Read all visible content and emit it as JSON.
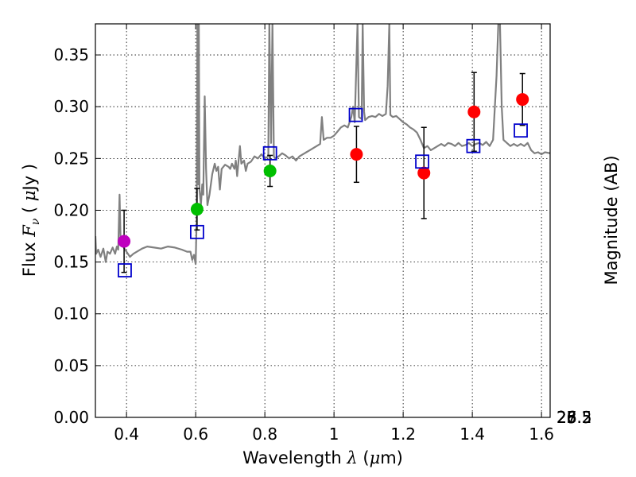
{
  "chart_data": {
    "type": "scatter",
    "title": "",
    "xlabel": "Wavelength  λ (μm)",
    "ylabel": "Flux  F_ν  ( μJy )",
    "ylabel_parts": {
      "prefix": "Flux ",
      "symbol": "F",
      "subscript": "ν",
      "open": " ( ",
      "mu": "μ",
      "unit": "Jy",
      "close": " )"
    },
    "xlabel_parts": {
      "prefix": "Wavelength ",
      "symbol": "λ",
      "open": " (",
      "mu": "μ",
      "unit": "m)"
    },
    "y2label": "Magnitude (AB)",
    "xlim": [
      0.31,
      1.625
    ],
    "ylim": [
      0.0,
      0.38
    ],
    "grid": true,
    "x_ticks": [
      0.4,
      0.6,
      0.8,
      1.0,
      1.2,
      1.4,
      1.6
    ],
    "x_tick_labels": [
      "0.4",
      "0.6",
      "0.8",
      "1",
      "1.2",
      "1.4",
      "1.6"
    ],
    "y_ticks": [
      0.0,
      0.05,
      0.1,
      0.15,
      0.2,
      0.25,
      0.3,
      0.35
    ],
    "y_tick_labels": [
      "0.00",
      "0.05",
      "0.10",
      "0.15",
      "0.20",
      "0.25",
      "0.30",
      "0.35"
    ],
    "y2_ticks": [
      25,
      25.2,
      25.5,
      26,
      26.5,
      27,
      28
    ],
    "y2_tick_labels": [
      "25",
      "25.2",
      "25.5",
      "26",
      "26.5",
      "27",
      "28"
    ],
    "y2_zero_point_ujy": 3630.78,
    "observed": [
      {
        "x": 0.393,
        "y": 0.17,
        "err": 0.03,
        "color": "#bf00bf"
      },
      {
        "x": 0.604,
        "y": 0.201,
        "err": 0.02,
        "color": "#00bf00"
      },
      {
        "x": 0.815,
        "y": 0.238,
        "err": 0.015,
        "color": "#00bf00"
      },
      {
        "x": 1.065,
        "y": 0.254,
        "err": 0.027,
        "color": "#ff0000"
      },
      {
        "x": 1.26,
        "y": 0.236,
        "err": 0.044,
        "color": "#ff0000"
      },
      {
        "x": 1.405,
        "y": 0.295,
        "err": 0.038,
        "color": "#ff0000"
      },
      {
        "x": 1.545,
        "y": 0.307,
        "err": 0.025,
        "color": "#ff0000"
      }
    ],
    "model_photometry": {
      "color": "#0000cc",
      "points": [
        {
          "x": 0.395,
          "y": 0.142
        },
        {
          "x": 0.604,
          "y": 0.179
        },
        {
          "x": 0.815,
          "y": 0.255
        },
        {
          "x": 1.063,
          "y": 0.292
        },
        {
          "x": 1.255,
          "y": 0.247
        },
        {
          "x": 1.403,
          "y": 0.262
        },
        {
          "x": 1.54,
          "y": 0.277
        }
      ]
    },
    "spectrum": {
      "color": "#808080",
      "points": [
        [
          0.31,
          0.175
        ],
        [
          0.312,
          0.158
        ],
        [
          0.318,
          0.162
        ],
        [
          0.325,
          0.155
        ],
        [
          0.333,
          0.163
        ],
        [
          0.34,
          0.15
        ],
        [
          0.345,
          0.16
        ],
        [
          0.352,
          0.158
        ],
        [
          0.36,
          0.164
        ],
        [
          0.367,
          0.158
        ],
        [
          0.372,
          0.165
        ],
        [
          0.376,
          0.162
        ],
        [
          0.38,
          0.215
        ],
        [
          0.383,
          0.168
        ],
        [
          0.39,
          0.165
        ],
        [
          0.4,
          0.16
        ],
        [
          0.41,
          0.155
        ],
        [
          0.42,
          0.158
        ],
        [
          0.43,
          0.16
        ],
        [
          0.445,
          0.163
        ],
        [
          0.46,
          0.165
        ],
        [
          0.48,
          0.164
        ],
        [
          0.5,
          0.163
        ],
        [
          0.52,
          0.165
        ],
        [
          0.54,
          0.164
        ],
        [
          0.56,
          0.162
        ],
        [
          0.575,
          0.16
        ],
        [
          0.585,
          0.16
        ],
        [
          0.59,
          0.152
        ],
        [
          0.595,
          0.157
        ],
        [
          0.6,
          0.148
        ],
        [
          0.603,
          0.192
        ],
        [
          0.605,
          0.38
        ],
        [
          0.607,
          0.225
        ],
        [
          0.609,
          0.38
        ],
        [
          0.611,
          0.22
        ],
        [
          0.615,
          0.205
        ],
        [
          0.619,
          0.225
        ],
        [
          0.622,
          0.215
        ],
        [
          0.626,
          0.31
        ],
        [
          0.63,
          0.24
        ],
        [
          0.634,
          0.205
        ],
        [
          0.64,
          0.215
        ],
        [
          0.648,
          0.235
        ],
        [
          0.655,
          0.245
        ],
        [
          0.66,
          0.238
        ],
        [
          0.665,
          0.242
        ],
        [
          0.67,
          0.22
        ],
        [
          0.675,
          0.24
        ],
        [
          0.685,
          0.244
        ],
        [
          0.695,
          0.242
        ],
        [
          0.7,
          0.24
        ],
        [
          0.705,
          0.245
        ],
        [
          0.712,
          0.24
        ],
        [
          0.716,
          0.248
        ],
        [
          0.72,
          0.233
        ],
        [
          0.728,
          0.262
        ],
        [
          0.732,
          0.245
        ],
        [
          0.74,
          0.248
        ],
        [
          0.745,
          0.238
        ],
        [
          0.75,
          0.245
        ],
        [
          0.76,
          0.247
        ],
        [
          0.77,
          0.252
        ],
        [
          0.78,
          0.25
        ],
        [
          0.79,
          0.254
        ],
        [
          0.8,
          0.25
        ],
        [
          0.81,
          0.252
        ],
        [
          0.813,
          0.38
        ],
        [
          0.818,
          0.265
        ],
        [
          0.822,
          0.38
        ],
        [
          0.826,
          0.252
        ],
        [
          0.83,
          0.25
        ],
        [
          0.84,
          0.252
        ],
        [
          0.85,
          0.255
        ],
        [
          0.86,
          0.253
        ],
        [
          0.87,
          0.25
        ],
        [
          0.88,
          0.252
        ],
        [
          0.89,
          0.248
        ],
        [
          0.9,
          0.252
        ],
        [
          0.91,
          0.254
        ],
        [
          0.92,
          0.256
        ],
        [
          0.93,
          0.258
        ],
        [
          0.94,
          0.26
        ],
        [
          0.95,
          0.262
        ],
        [
          0.96,
          0.264
        ],
        [
          0.965,
          0.29
        ],
        [
          0.97,
          0.268
        ],
        [
          0.98,
          0.27
        ],
        [
          0.99,
          0.27
        ],
        [
          1.0,
          0.272
        ],
        [
          1.01,
          0.276
        ],
        [
          1.02,
          0.28
        ],
        [
          1.03,
          0.282
        ],
        [
          1.04,
          0.28
        ],
        [
          1.045,
          0.285
        ],
        [
          1.05,
          0.29
        ],
        [
          1.055,
          0.3
        ],
        [
          1.06,
          0.285
        ],
        [
          1.068,
          0.38
        ],
        [
          1.072,
          0.29
        ],
        [
          1.08,
          0.288
        ],
        [
          1.083,
          0.38
        ],
        [
          1.087,
          0.295
        ],
        [
          1.09,
          0.287
        ],
        [
          1.1,
          0.29
        ],
        [
          1.11,
          0.291
        ],
        [
          1.12,
          0.29
        ],
        [
          1.13,
          0.293
        ],
        [
          1.14,
          0.291
        ],
        [
          1.15,
          0.293
        ],
        [
          1.155,
          0.32
        ],
        [
          1.16,
          0.38
        ],
        [
          1.163,
          0.292
        ],
        [
          1.17,
          0.29
        ],
        [
          1.18,
          0.291
        ],
        [
          1.19,
          0.288
        ],
        [
          1.2,
          0.285
        ],
        [
          1.21,
          0.283
        ],
        [
          1.22,
          0.28
        ],
        [
          1.23,
          0.278
        ],
        [
          1.24,
          0.275
        ],
        [
          1.25,
          0.268
        ],
        [
          1.26,
          0.26
        ],
        [
          1.27,
          0.262
        ],
        [
          1.28,
          0.258
        ],
        [
          1.29,
          0.26
        ],
        [
          1.3,
          0.262
        ],
        [
          1.31,
          0.264
        ],
        [
          1.32,
          0.262
        ],
        [
          1.33,
          0.265
        ],
        [
          1.34,
          0.264
        ],
        [
          1.35,
          0.262
        ],
        [
          1.36,
          0.265
        ],
        [
          1.37,
          0.262
        ],
        [
          1.38,
          0.263
        ],
        [
          1.39,
          0.265
        ],
        [
          1.4,
          0.262
        ],
        [
          1.41,
          0.264
        ],
        [
          1.42,
          0.265
        ],
        [
          1.43,
          0.263
        ],
        [
          1.44,
          0.266
        ],
        [
          1.45,
          0.262
        ],
        [
          1.46,
          0.268
        ],
        [
          1.47,
          0.33
        ],
        [
          1.475,
          0.38
        ],
        [
          1.48,
          0.38
        ],
        [
          1.485,
          0.3
        ],
        [
          1.49,
          0.268
        ],
        [
          1.5,
          0.265
        ],
        [
          1.51,
          0.262
        ],
        [
          1.52,
          0.264
        ],
        [
          1.53,
          0.262
        ],
        [
          1.54,
          0.264
        ],
        [
          1.55,
          0.262
        ],
        [
          1.56,
          0.265
        ],
        [
          1.57,
          0.258
        ],
        [
          1.58,
          0.255
        ],
        [
          1.59,
          0.256
        ],
        [
          1.6,
          0.254
        ],
        [
          1.61,
          0.256
        ],
        [
          1.625,
          0.255
        ]
      ]
    }
  }
}
